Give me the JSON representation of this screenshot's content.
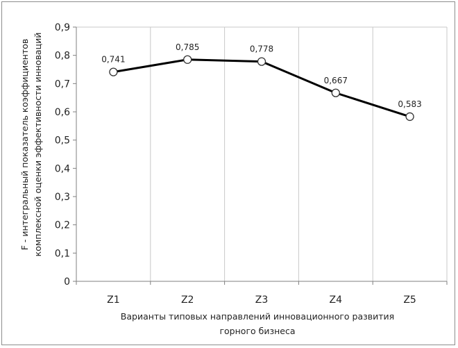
{
  "chart_data": {
    "type": "line",
    "categories": [
      "Z1",
      "Z2",
      "Z3",
      "Z4",
      "Z5"
    ],
    "series": [
      {
        "values": [
          0.741,
          0.785,
          0.778,
          0.667,
          0.583
        ]
      }
    ],
    "data_labels": [
      "0,741",
      "0,785",
      "0,778",
      "0,667",
      "0,583"
    ],
    "y_ticks": [
      0,
      0.1,
      0.2,
      0.3,
      0.4,
      0.5,
      0.6,
      0.7,
      0.8,
      0.9
    ],
    "y_tick_labels": [
      "0",
      "0,1",
      "0,2",
      "0,3",
      "0,4",
      "0,5",
      "0,6",
      "0,7",
      "0,8",
      "0,9"
    ],
    "ylim": [
      0,
      0.9
    ],
    "grid": "vertical",
    "marker": "open-circle",
    "line_color": "#000000",
    "grid_color": "#c8c8c8",
    "xlabel": [
      "Варианты типовых направлений инновационного  развития",
      "горного бизнеса"
    ],
    "ylabel": [
      "F - интегральный показатель коэффициентов",
      "комплексной оценки эффективности инноваций"
    ]
  }
}
